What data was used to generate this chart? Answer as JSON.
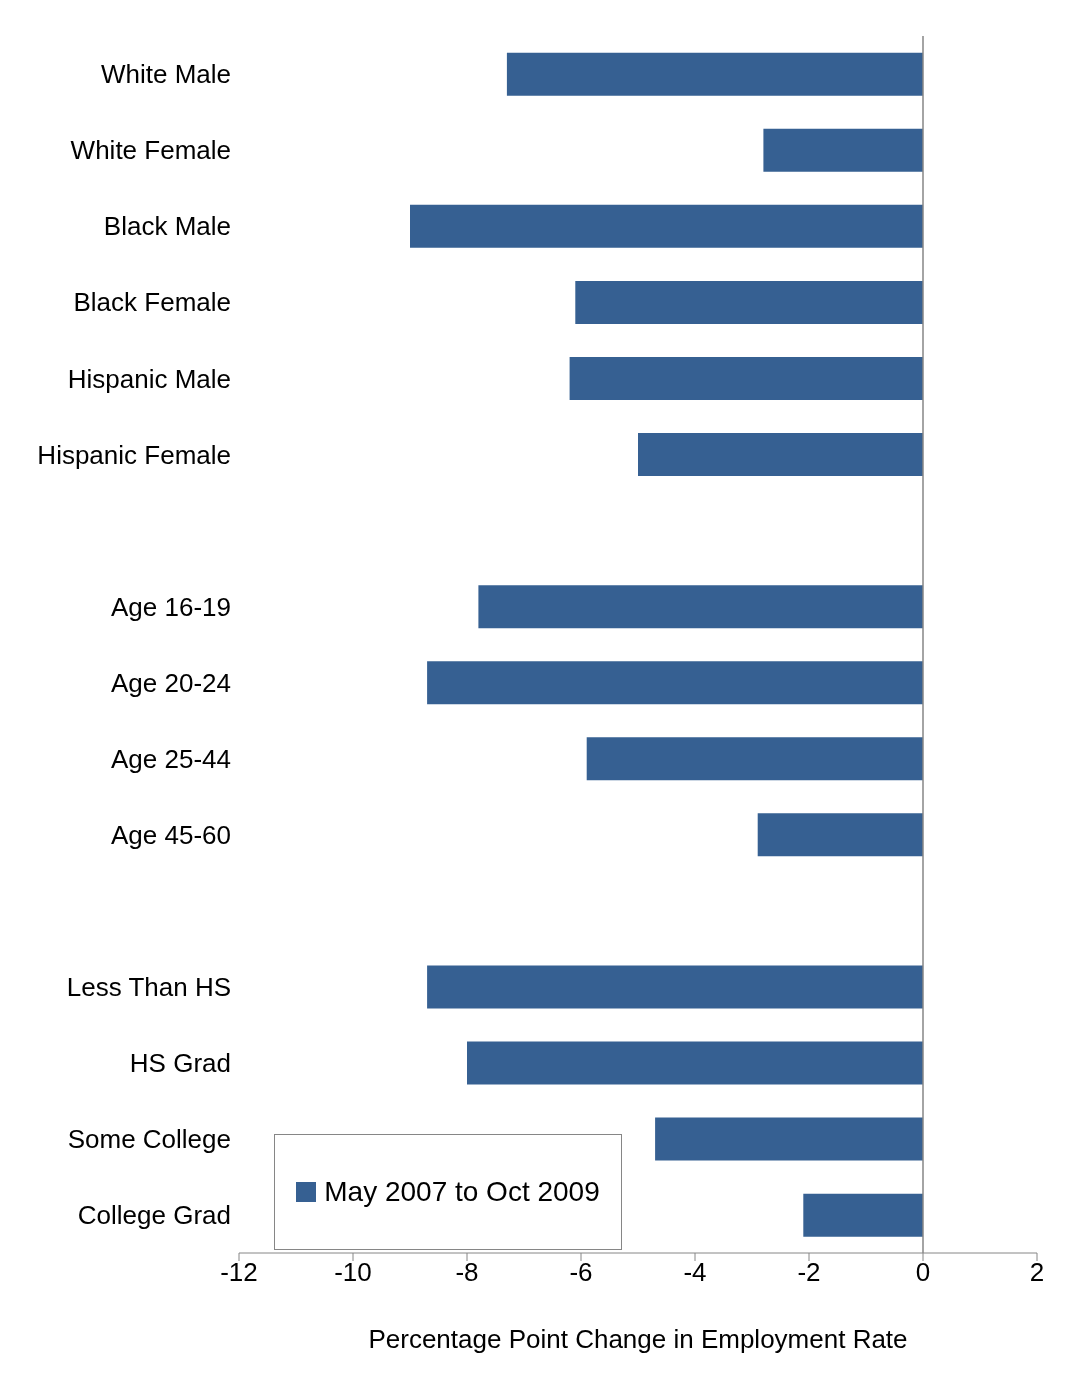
{
  "chart_data": {
    "type": "bar",
    "orientation": "horizontal",
    "xlabel": "Percentage Point Change in Employment Rate",
    "categories": [
      "White Male",
      "White Female",
      "Black Male",
      "Black Female",
      "Hispanic Male",
      "Hispanic Female",
      null,
      "Age 16-19",
      "Age 20-24",
      "Age 25-44",
      "Age 45-60",
      null,
      "Less Than HS",
      "HS Grad",
      "Some College",
      "College Grad"
    ],
    "series": [
      {
        "name": "May 2007 to Oct 2009",
        "color": "#366092",
        "values": [
          -7.3,
          -2.8,
          -9.0,
          -6.1,
          -6.2,
          -5.0,
          null,
          -7.8,
          -8.7,
          -5.9,
          -2.9,
          null,
          -8.7,
          -8.0,
          -4.7,
          -2.1
        ]
      }
    ],
    "xlim": [
      -12,
      2
    ],
    "xticks": [
      -12,
      -10,
      -8,
      -6,
      -4,
      -2,
      0,
      2
    ],
    "legend": "bottom left",
    "ref_lines": [
      {
        "axis": "x",
        "value": 0,
        "color": "#868686"
      }
    ]
  }
}
